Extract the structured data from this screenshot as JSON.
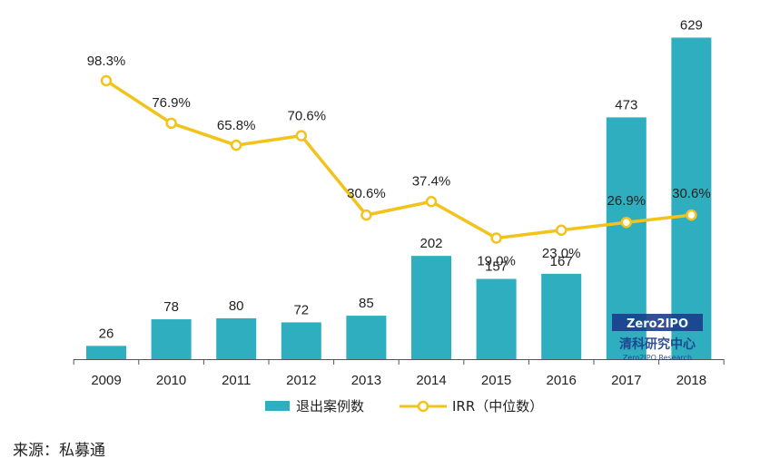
{
  "chart_data": {
    "type": "bar+line",
    "categories": [
      "2009",
      "2010",
      "2011",
      "2012",
      "2013",
      "2014",
      "2015",
      "2016",
      "2017",
      "2018"
    ],
    "series": [
      {
        "name": "退出案例数",
        "type": "bar",
        "axis": "left",
        "values": [
          26,
          78,
          80,
          72,
          85,
          202,
          157,
          167,
          473,
          629
        ],
        "labels": [
          "26",
          "78",
          "80",
          "72",
          "85",
          "202",
          "157",
          "167",
          "473",
          "629"
        ]
      },
      {
        "name": "IRR（中位数）",
        "type": "line",
        "axis": "right",
        "values": [
          98.3,
          76.9,
          65.8,
          70.6,
          30.6,
          37.4,
          19.0,
          23.0,
          26.9,
          30.6
        ],
        "labels": [
          "98.3%",
          "76.9%",
          "65.8%",
          "70.6%",
          "30.6%",
          "37.4%",
          "19.0%",
          "23.0%",
          "26.9%",
          "30.6%"
        ]
      }
    ],
    "left_axis_range": [
      0,
      660
    ],
    "right_axis_range": [
      -42,
      128
    ],
    "grid": false,
    "legend_position": "bottom"
  },
  "colors": {
    "bar": "#2eaebf",
    "line": "#f2c31a",
    "marker_fill": "#ffffff",
    "axis": "#555555"
  },
  "watermark": {
    "logo_text": "Zero2IPO",
    "cn_name": "清科研究中心",
    "en_name": "Zero2IPO Research"
  },
  "source": "来源：私募通"
}
